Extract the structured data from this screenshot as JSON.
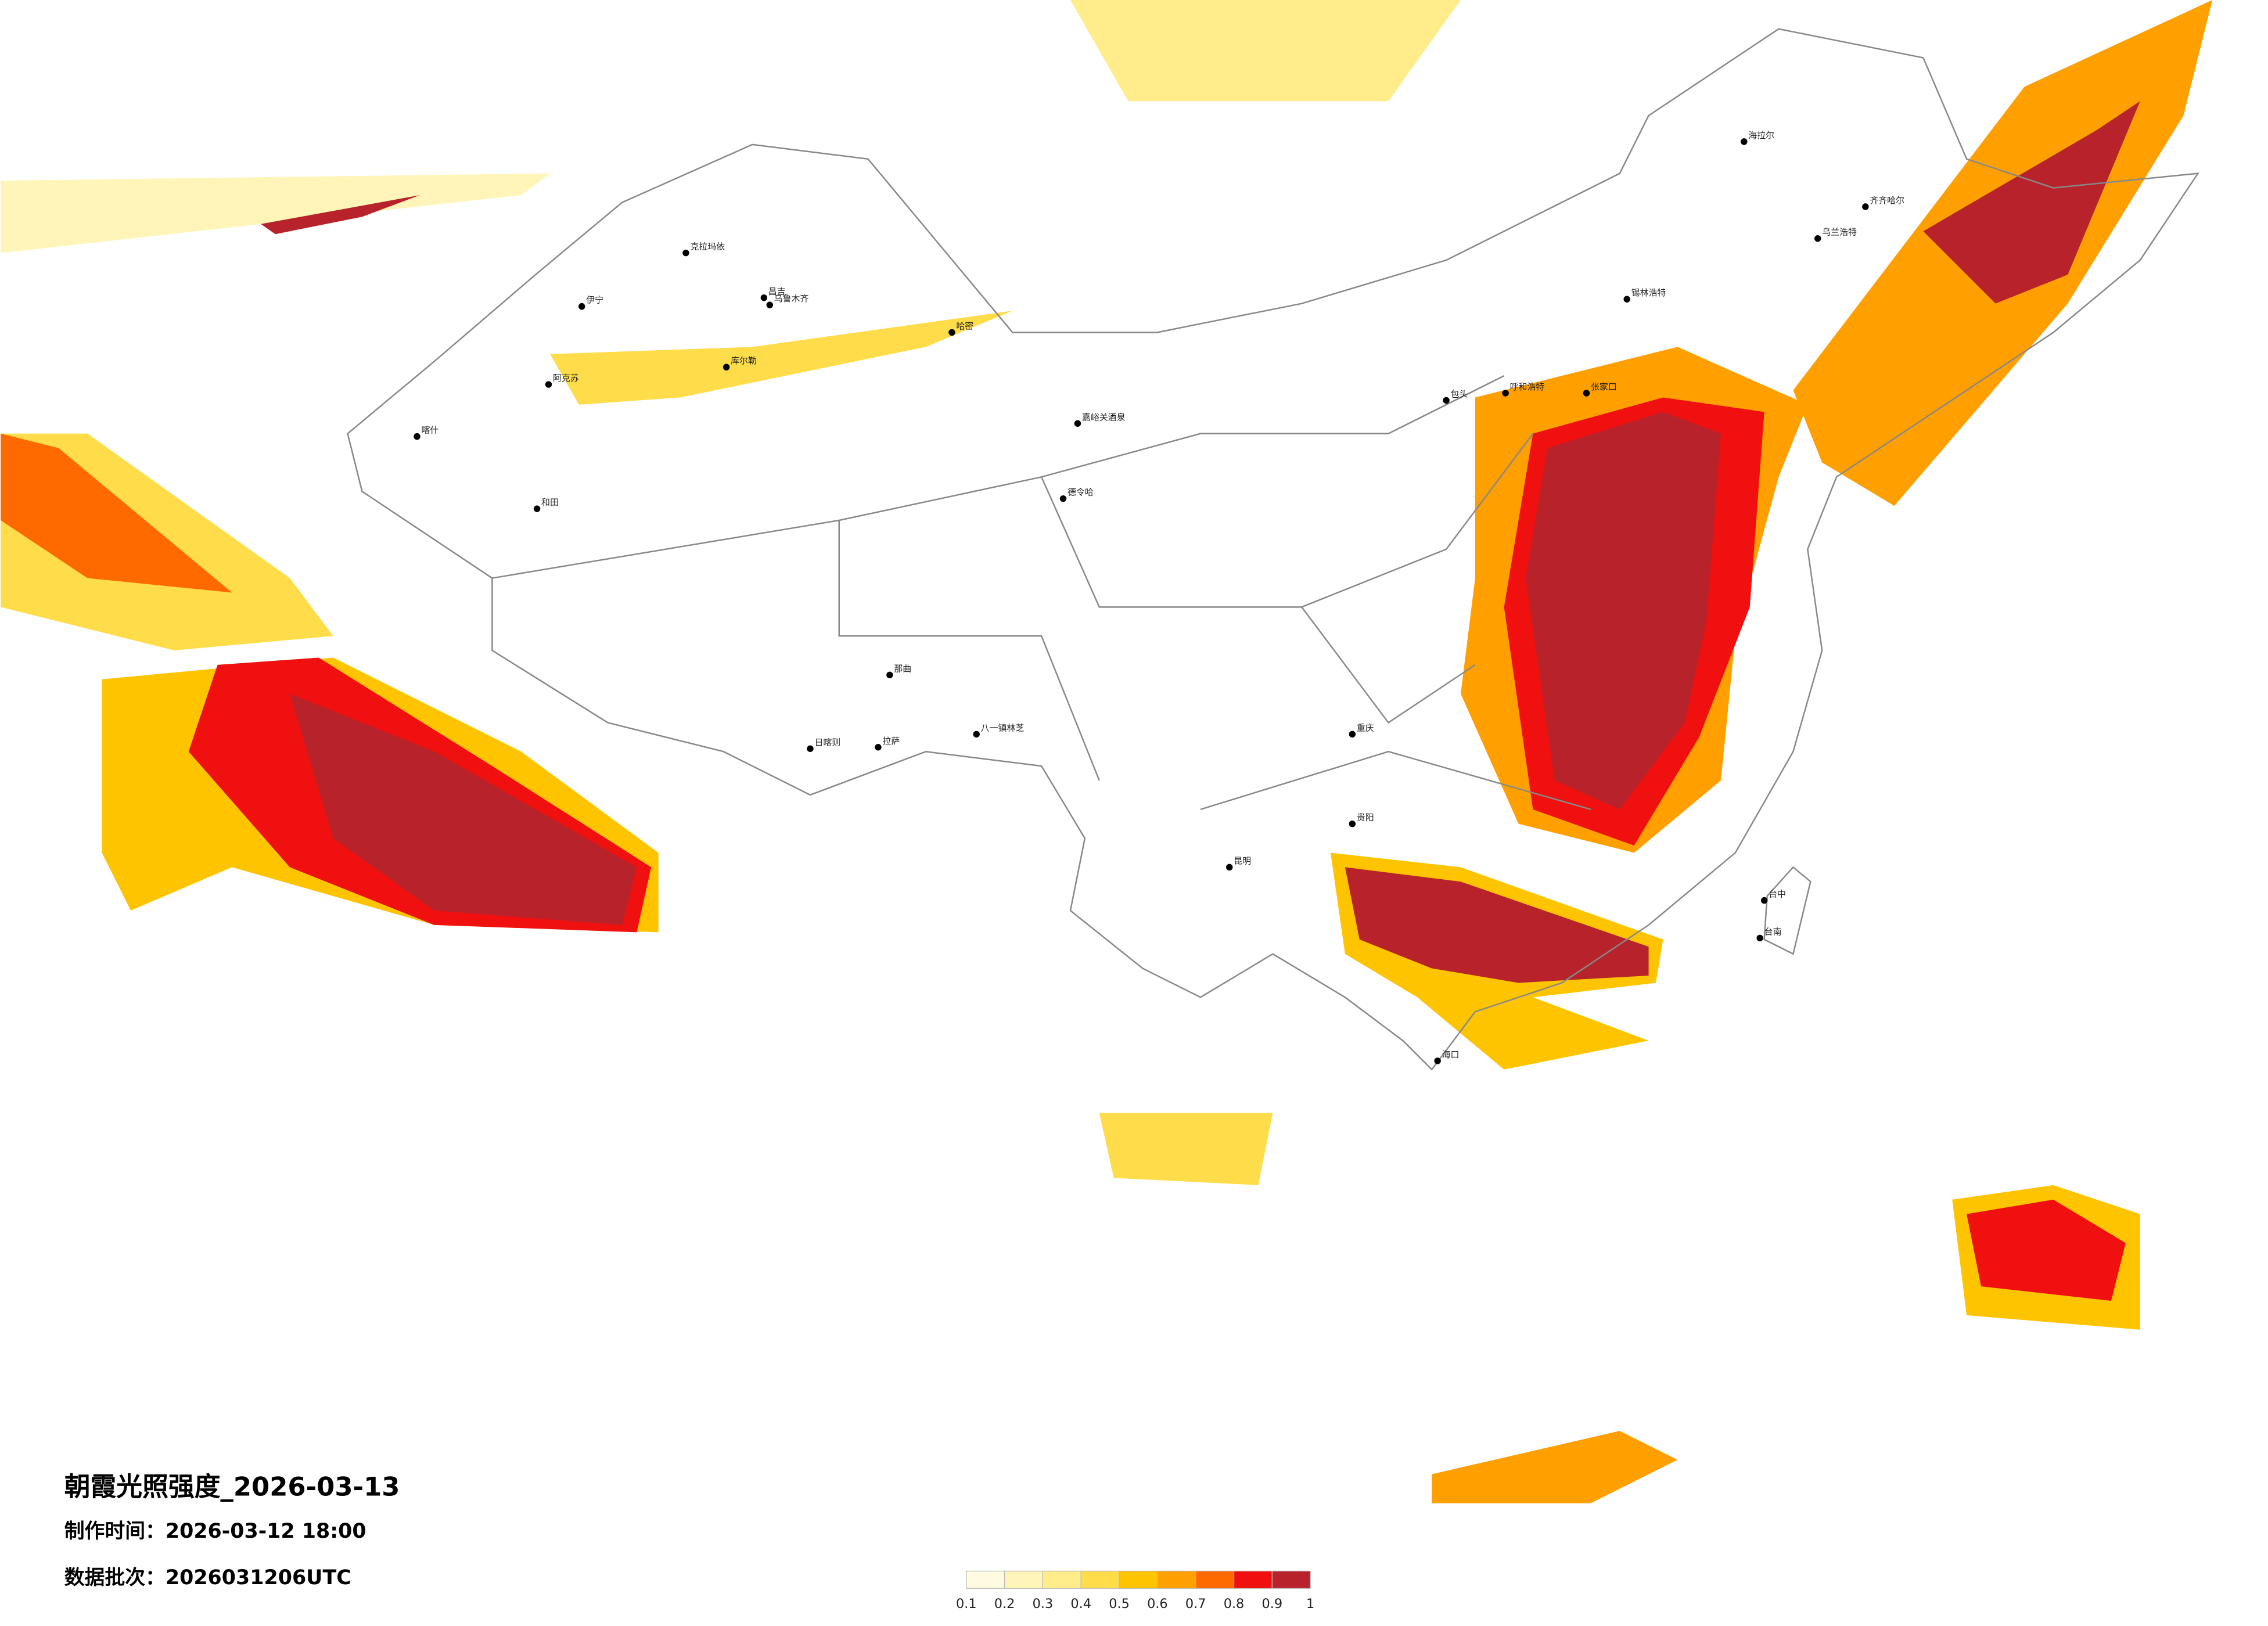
{
  "title": "朝霞光照强度_2026-03-13",
  "issue_time": "制作时间：2026-03-12 18:00",
  "batch": "数据批次：2026031206UTC",
  "legend": {
    "ticks": [
      0.1,
      0.2,
      0.3,
      0.4,
      0.5,
      0.6,
      0.7,
      0.8,
      0.9,
      1
    ],
    "colors": [
      "#fffbe0",
      "#fff5b8",
      "#ffec8a",
      "#ffdc4a",
      "#ffc400",
      "#ff9f00",
      "#ff6a00",
      "#f01010",
      "#b8222a"
    ]
  },
  "cities": [
    {
      "name": "克拉玛依"
    },
    {
      "name": "伊宁"
    },
    {
      "name": "昌吉"
    },
    {
      "name": "乌鲁木齐"
    },
    {
      "name": "阿克苏"
    },
    {
      "name": "库尔勒"
    },
    {
      "name": "和田"
    },
    {
      "name": "喀什"
    },
    {
      "name": "哈密"
    },
    {
      "name": "嘉峪关酒泉"
    },
    {
      "name": "德令哈"
    },
    {
      "name": "拉萨"
    },
    {
      "name": "日喀则"
    },
    {
      "name": "那曲"
    },
    {
      "name": "八一镇林芝"
    },
    {
      "name": "海拉尔"
    },
    {
      "name": "齐齐哈尔"
    },
    {
      "name": "乌兰浩特"
    },
    {
      "name": "锡林浩特"
    },
    {
      "name": "呼和浩特"
    },
    {
      "name": "包头"
    },
    {
      "name": "张家口"
    },
    {
      "name": "重庆"
    },
    {
      "name": "贵阳"
    },
    {
      "name": "昆明"
    },
    {
      "name": "海口"
    },
    {
      "name": "台中"
    },
    {
      "name": "台南"
    }
  ]
}
